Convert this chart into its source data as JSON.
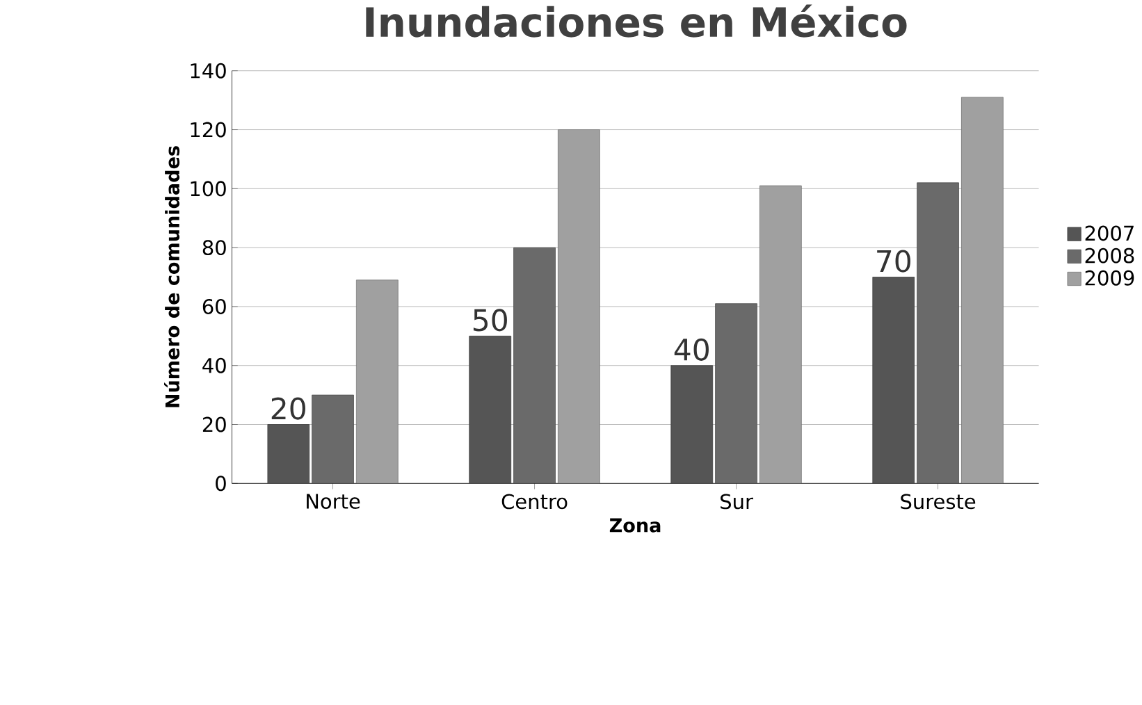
{
  "chart_data": {
    "type": "bar",
    "title": "Inundaciones en México",
    "xlabel": "Zona",
    "ylabel": "Número de comunidades",
    "categories": [
      "Norte",
      "Centro",
      "Sur",
      "Sureste"
    ],
    "series": [
      {
        "name": "2007",
        "color": "#555555",
        "values": [
          20,
          50,
          40,
          70
        ],
        "value_labels": [
          "20",
          "50",
          "40",
          "70"
        ]
      },
      {
        "name": "2008",
        "color": "#6a6a6a",
        "values": [
          30,
          80,
          61,
          102
        ]
      },
      {
        "name": "2009",
        "color": "#a0a0a0",
        "values": [
          69,
          120,
          101,
          131
        ]
      }
    ],
    "ylim": [
      0,
      140
    ],
    "yticks": [
      0,
      20,
      40,
      60,
      80,
      100,
      120,
      140
    ],
    "grid": "y",
    "legend": "right"
  }
}
